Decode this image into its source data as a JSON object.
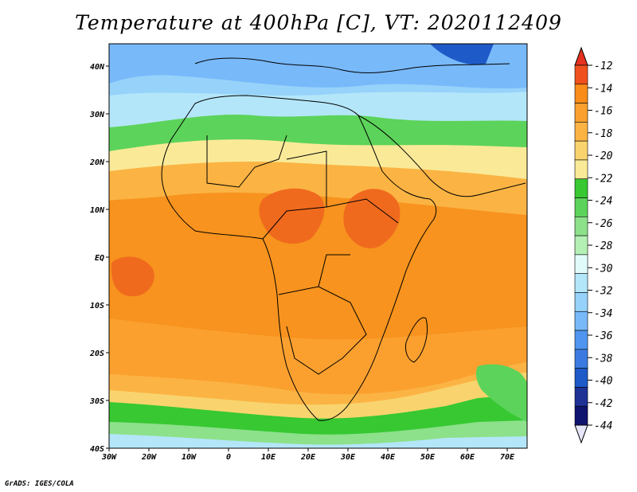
{
  "title": "Temperature at 400hPa [C], VT: 2020112409",
  "credit": "GrADS: IGES/COLA",
  "lat_ticks": [
    "40N",
    "30N",
    "20N",
    "10N",
    "EQ",
    "10S",
    "20S",
    "30S",
    "40S"
  ],
  "lon_ticks": [
    "30W",
    "20W",
    "10W",
    "0",
    "10E",
    "20E",
    "30E",
    "40E",
    "50E",
    "60E",
    "70E"
  ],
  "colorbar": {
    "labels": [
      "-12",
      "-14",
      "-16",
      "-18",
      "-20",
      "-22",
      "-24",
      "-26",
      "-28",
      "-30",
      "-32",
      "-34",
      "-36",
      "-38",
      "-40",
      "-42",
      "-44"
    ],
    "colors": [
      "#f0501e",
      "#fa8c19",
      "#fba02f",
      "#fbb444",
      "#f9d46e",
      "#faea98",
      "#37c832",
      "#5cd35a",
      "#8ce18a",
      "#b4f0b4",
      "#e1fafa",
      "#b4e6fa",
      "#96d2fa",
      "#78b9fa",
      "#5096f0",
      "#3c7ae1",
      "#1e5ac8",
      "#1e3296",
      "#0f146e"
    ],
    "top_color": "#e6321e",
    "bottom_color": "#e6e6fa"
  },
  "colors": {
    "deep_orange": "#f06a1e",
    "orange": "#f7931e",
    "light_orange": "#fbb040",
    "yellow": "#f9d46e",
    "pale_yellow": "#faea98",
    "green": "#37c832",
    "light_green": "#8ce18a",
    "pale_cyan": "#e1fafa",
    "light_blue": "#96d2fa",
    "blue": "#5096f0",
    "dark_blue": "#1e5ac8"
  }
}
